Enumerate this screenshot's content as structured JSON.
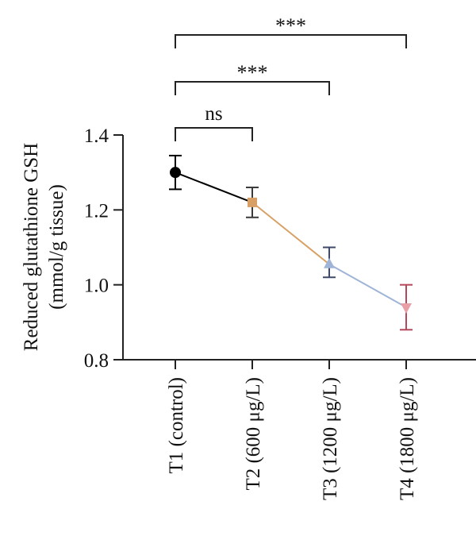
{
  "chart_data": {
    "type": "line",
    "categories": [
      "T1 (control)",
      "T2 (600 μg/L)",
      "T3 (1200 μg/L)",
      "T4 (1800 μg/L)"
    ],
    "points": [
      {
        "category": "T1 (control)",
        "value": 1.3,
        "err_low": 1.255,
        "err_high": 1.345,
        "marker": "circle",
        "color": "#000000"
      },
      {
        "category": "T2 (600 μg/L)",
        "value": 1.22,
        "err_low": 1.18,
        "err_high": 1.26,
        "marker": "square",
        "color": "#D9A066"
      },
      {
        "category": "T3 (1200 μg/L)",
        "value": 1.055,
        "err_low": 1.02,
        "err_high": 1.1,
        "marker": "triangle-up",
        "color": "#9FB4D6"
      },
      {
        "category": "T4 (1800 μg/L)",
        "value": 0.94,
        "err_low": 0.88,
        "err_high": 1.0,
        "marker": "triangle-down",
        "color": "#E8A0A6"
      }
    ],
    "error_bar_colors": [
      "#000000",
      "#3a3a3a",
      "#3f4a6b",
      "#b5485a"
    ],
    "segment_colors": [
      "#000000",
      "#D9A066",
      "#9FB4D6"
    ],
    "ylabel_line1": "Reduced glutathione GSH",
    "ylabel_line2": "(mmol/g tissue)",
    "ylim": [
      0.8,
      1.4
    ],
    "yticks": [
      "0.8",
      "1.0",
      "1.2",
      "1.4"
    ],
    "ytick_values": [
      0.8,
      1.0,
      1.2,
      1.4
    ],
    "significance": [
      {
        "from": "T1 (control)",
        "to": "T2 (600 μg/L)",
        "label": "ns",
        "level": 1
      },
      {
        "from": "T1 (control)",
        "to": "T3 (1200 μg/L)",
        "label": "***",
        "level": 2
      },
      {
        "from": "T1 (control)",
        "to": "T4 (1800 μg/L)",
        "label": "***",
        "level": 3
      }
    ],
    "grid": false,
    "legend": "none"
  }
}
